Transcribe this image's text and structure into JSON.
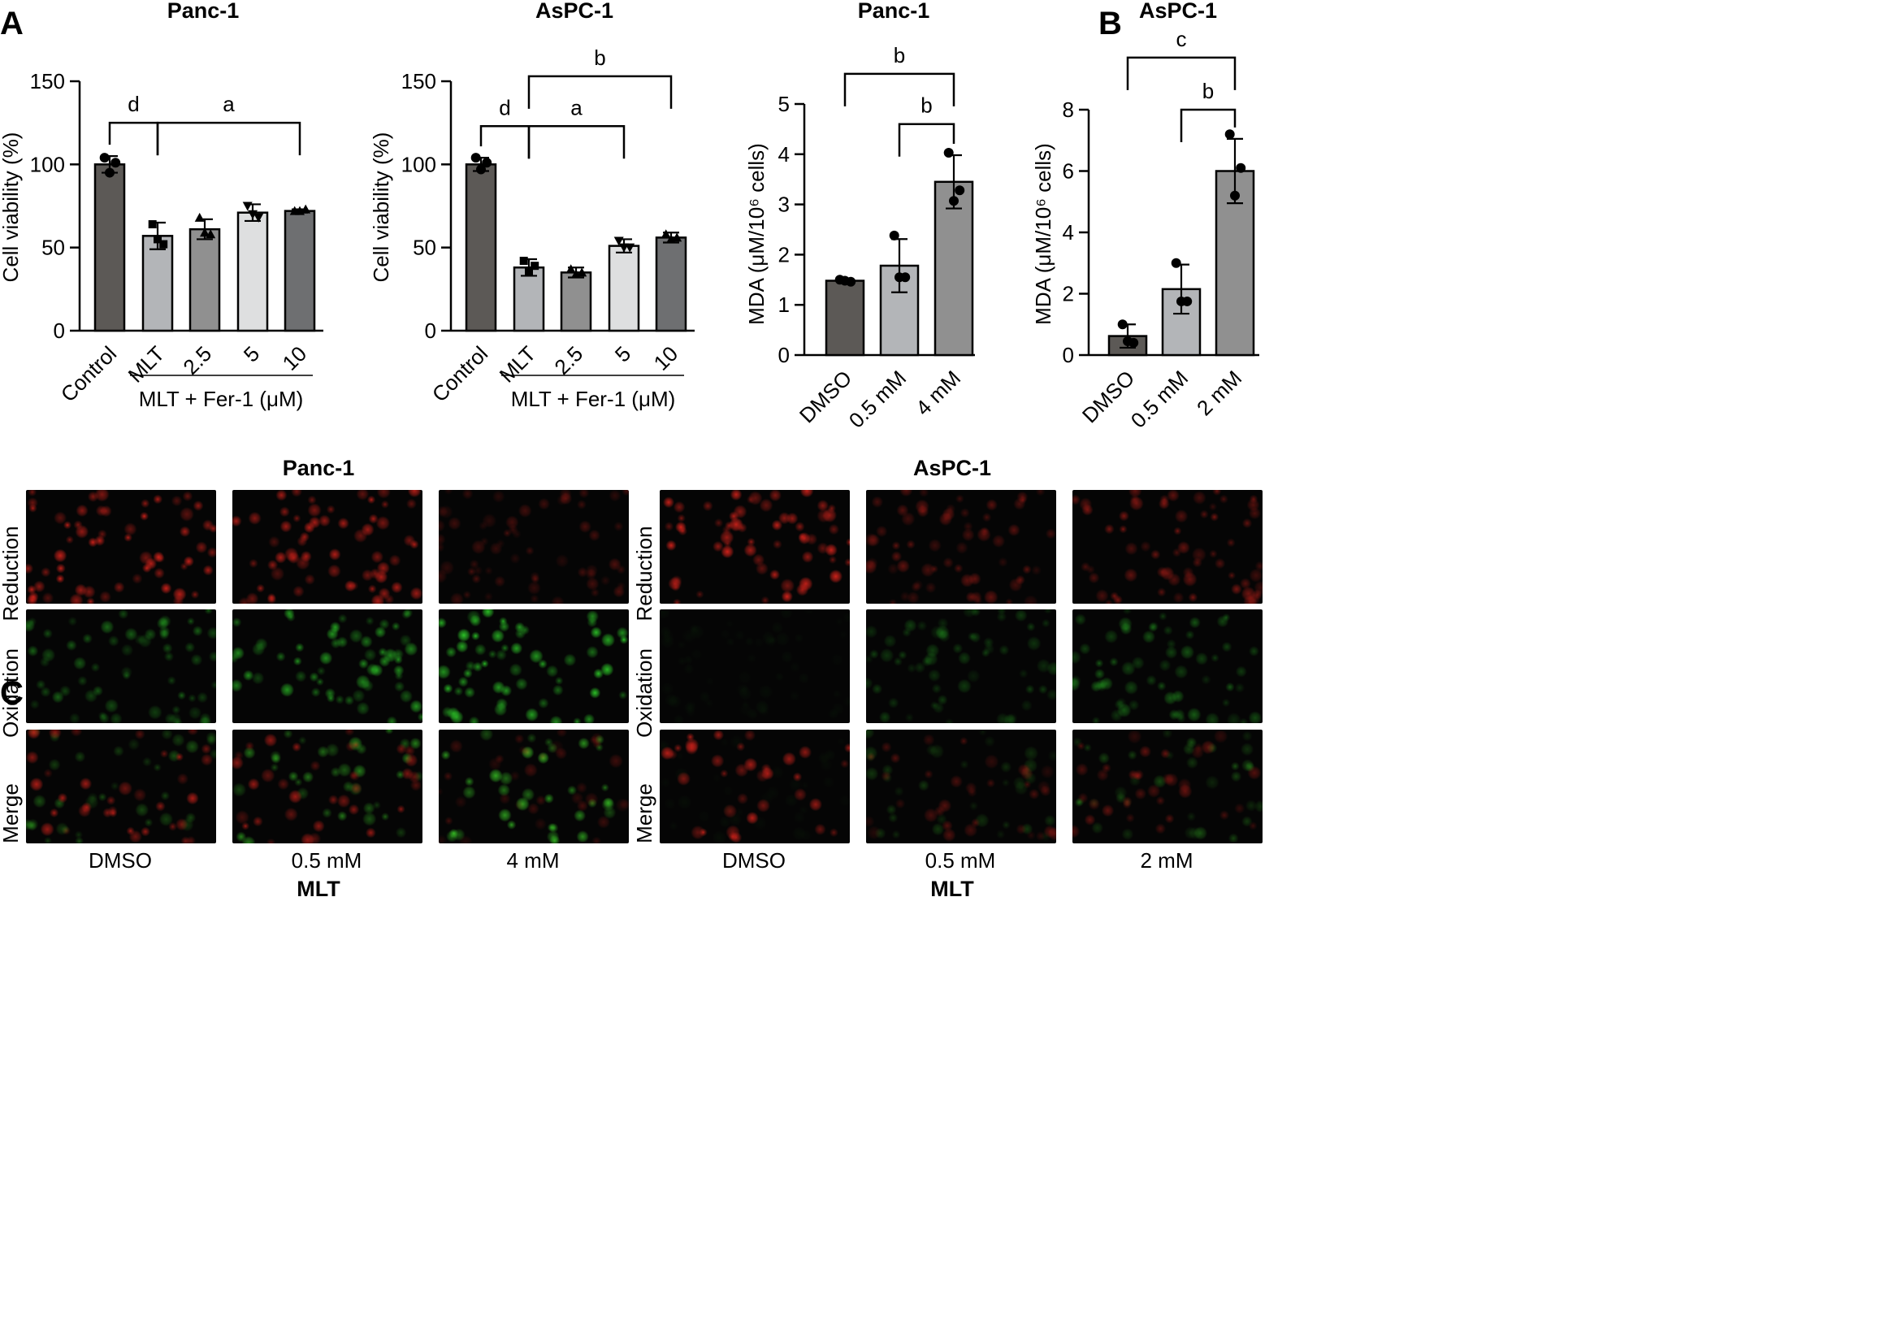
{
  "panels": {
    "A": "A",
    "B": "B",
    "C": "C"
  },
  "chart_data": [
    {
      "type": "bar",
      "panel": "A",
      "title": "Panc-1",
      "ylabel": "Cell viability (%)",
      "ylim": [
        0,
        150
      ],
      "yticks": [
        0,
        50,
        100,
        150
      ],
      "categories": [
        "Control",
        "MLT",
        "2.5",
        "5",
        "10"
      ],
      "group_label": "MLT + Fer-1 (μM)",
      "values": [
        100,
        57,
        61,
        71,
        72
      ],
      "errors": [
        5,
        8,
        6,
        5,
        1
      ],
      "bar_colors": [
        "#5c5956",
        "#b3b5b8",
        "#909090",
        "#dedfe0",
        "#6e6f71"
      ],
      "points": [
        [
          104,
          101,
          95
        ],
        [
          64,
          52,
          55
        ],
        [
          68,
          58,
          59
        ],
        [
          75,
          68,
          70
        ],
        [
          72,
          73,
          72
        ]
      ],
      "significance": [
        {
          "from": 0,
          "to": 1,
          "label": "d",
          "y": 125
        },
        {
          "from": 1,
          "to": 4,
          "label": "a",
          "y": 125
        }
      ]
    },
    {
      "type": "bar",
      "panel": "A",
      "title": "AsPC-1",
      "ylabel": "Cell viability (%)",
      "ylim": [
        0,
        150
      ],
      "yticks": [
        0,
        50,
        100,
        150
      ],
      "categories": [
        "Control",
        "MLT",
        "2.5",
        "5",
        "10"
      ],
      "group_label": "MLT + Fer-1 (μM)",
      "values": [
        100,
        38,
        35,
        51,
        56
      ],
      "errors": [
        4,
        5,
        3,
        4,
        3
      ],
      "bar_colors": [
        "#5c5956",
        "#b3b5b8",
        "#909090",
        "#dedfe0",
        "#6e6f71"
      ],
      "points": [
        [
          104,
          101,
          97
        ],
        [
          42,
          39,
          35
        ],
        [
          37,
          35,
          34
        ],
        [
          54,
          50,
          50
        ],
        [
          58,
          56,
          55
        ]
      ],
      "significance": [
        {
          "from": 0,
          "to": 1,
          "label": "d",
          "y": 123
        },
        {
          "from": 1,
          "to": 3,
          "label": "a",
          "y": 123
        },
        {
          "from": 1,
          "to": 4,
          "label": "b",
          "y": 153
        }
      ]
    },
    {
      "type": "bar",
      "panel": "B",
      "title": "Panc-1",
      "ylabel": "MDA (μM/10⁶ cells)",
      "ylim": [
        0,
        5
      ],
      "yticks": [
        0,
        1,
        2,
        3,
        4,
        5
      ],
      "categories": [
        "DMSO",
        "0.5 mM",
        "4 mM"
      ],
      "values": [
        1.48,
        1.78,
        3.45
      ],
      "errors": [
        0.04,
        0.53,
        0.53
      ],
      "bar_colors": [
        "#5c5956",
        "#b3b5b8",
        "#909090"
      ],
      "points": [
        [
          1.5,
          1.46,
          1.48
        ],
        [
          2.38,
          1.55,
          1.55
        ],
        [
          4.03,
          3.28,
          3.07
        ]
      ],
      "significance": [
        {
          "from": 0,
          "to": 2,
          "label": "b",
          "y": 5.6
        },
        {
          "from": 1,
          "to": 2,
          "label": "b",
          "y": 4.6
        }
      ]
    },
    {
      "type": "bar",
      "panel": "B",
      "title": "AsPC-1",
      "ylabel": "MDA (μM/10⁶ cells)",
      "ylim": [
        0,
        8
      ],
      "yticks": [
        0,
        2,
        4,
        6,
        8
      ],
      "categories": [
        "DMSO",
        "0.5 mM",
        "2 mM"
      ],
      "values": [
        0.62,
        2.15,
        6.0
      ],
      "errors": [
        0.38,
        0.8,
        1.05
      ],
      "bar_colors": [
        "#5c5956",
        "#b3b5b8",
        "#909090"
      ],
      "points": [
        [
          1.0,
          0.4,
          0.45
        ],
        [
          3.0,
          1.75,
          1.75
        ],
        [
          7.2,
          6.1,
          5.2
        ]
      ],
      "significance": [
        {
          "from": 0,
          "to": 2,
          "label": "c",
          "y": 9.7
        },
        {
          "from": 1,
          "to": 2,
          "label": "b",
          "y": 8.0
        }
      ]
    }
  ],
  "panel_c": {
    "groups": [
      {
        "title": "Panc-1",
        "conditions": [
          "DMSO",
          "0.5 mM",
          "4 mM"
        ],
        "treatment_label": "MLT"
      },
      {
        "title": "AsPC-1",
        "conditions": [
          "DMSO",
          "0.5 mM",
          "2 mM"
        ],
        "treatment_label": "MLT"
      }
    ],
    "rows": [
      "Reduction",
      "Oxidation",
      "Merge"
    ],
    "channel_colors": {
      "reduction": "#e0241c",
      "oxidation": "#2fd22a"
    },
    "intensity": {
      "Panc-1": {
        "reduction": [
          0.95,
          0.85,
          0.35
        ],
        "oxidation": [
          0.5,
          0.75,
          1.0
        ]
      },
      "AsPC-1": {
        "reduction": [
          1.0,
          0.45,
          0.55
        ],
        "oxidation": [
          0.05,
          0.3,
          0.45
        ]
      }
    }
  }
}
